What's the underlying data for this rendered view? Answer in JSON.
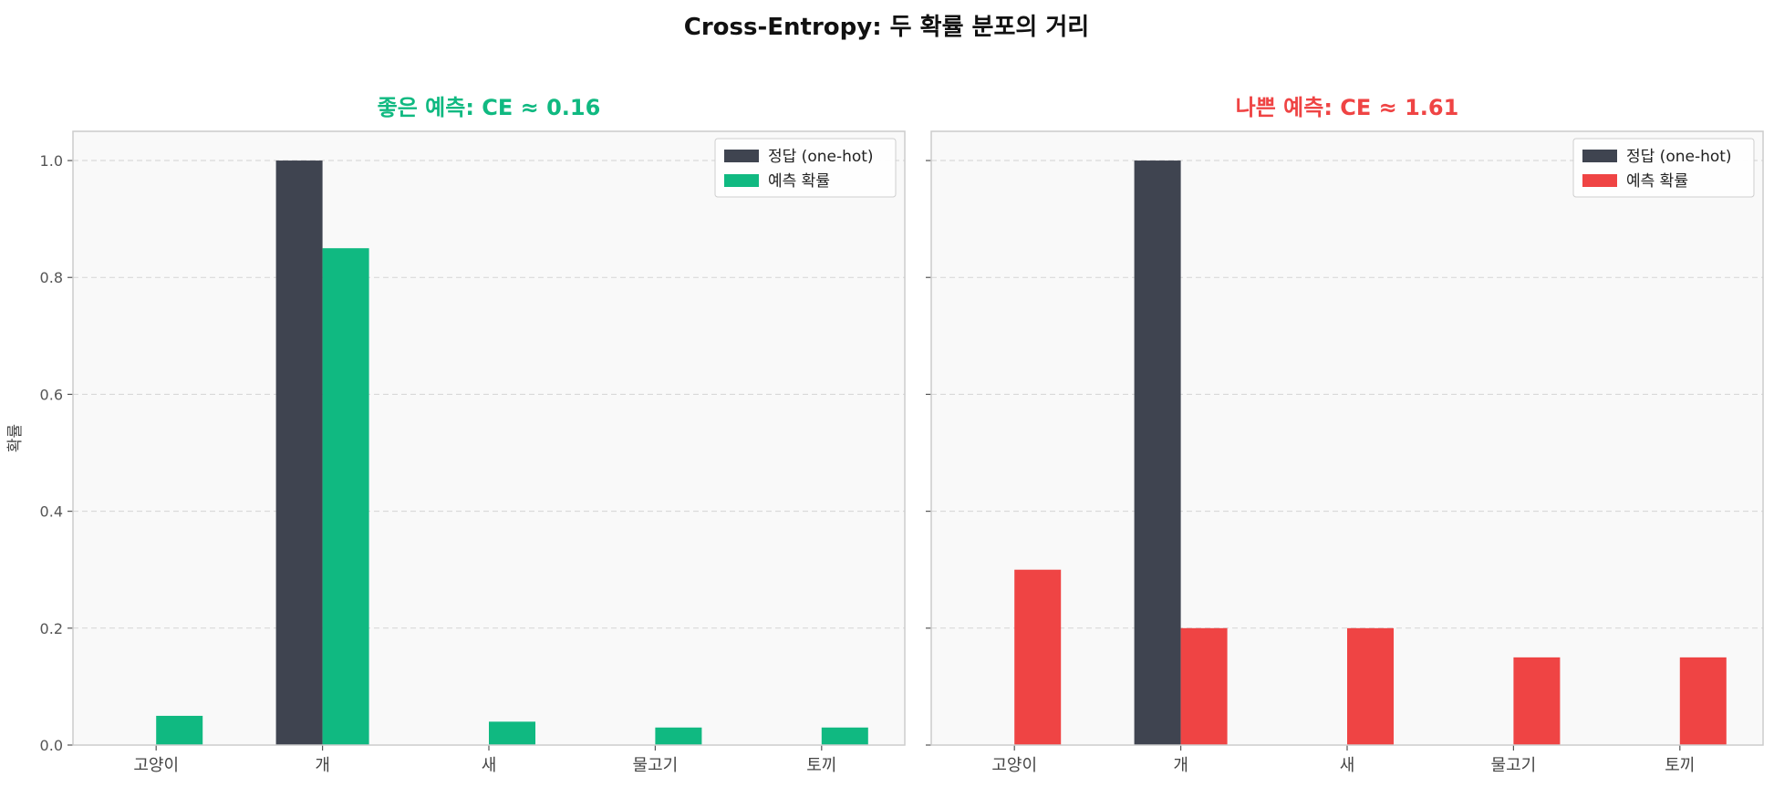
{
  "figure": {
    "title": "Cross-Entropy: 두 확률 분포의 거리"
  },
  "chart_data": [
    {
      "type": "bar",
      "title": "좋은 예측: CE ≈ 0.16",
      "title_color": "#10b981",
      "xlabel": "",
      "ylabel": "확률",
      "categories": [
        "고양이",
        "개",
        "새",
        "물고기",
        "토끼"
      ],
      "ylim": [
        0,
        1.05
      ],
      "yticks": [
        "0.0",
        "0.2",
        "0.4",
        "0.6",
        "0.8",
        "1.0"
      ],
      "grid": true,
      "legend_position": "top-right",
      "series": [
        {
          "name": "정답 (one-hot)",
          "color": "#3f4450",
          "values": [
            0,
            1.0,
            0,
            0,
            0
          ]
        },
        {
          "name": "예측 확률",
          "color": "#10b981",
          "values": [
            0.05,
            0.85,
            0.04,
            0.03,
            0.03
          ]
        }
      ]
    },
    {
      "type": "bar",
      "title": "나쁜 예측: CE ≈ 1.61",
      "title_color": "#ef4444",
      "xlabel": "",
      "ylabel": "",
      "categories": [
        "고양이",
        "개",
        "새",
        "물고기",
        "토끼"
      ],
      "ylim": [
        0,
        1.05
      ],
      "yticks": [
        "",
        "",
        "",
        "",
        "",
        ""
      ],
      "grid": true,
      "legend_position": "top-right",
      "series": [
        {
          "name": "정답 (one-hot)",
          "color": "#3f4450",
          "values": [
            0,
            1.0,
            0,
            0,
            0
          ]
        },
        {
          "name": "예측 확률",
          "color": "#ef4444",
          "values": [
            0.3,
            0.2,
            0.2,
            0.15,
            0.15
          ]
        }
      ]
    }
  ]
}
